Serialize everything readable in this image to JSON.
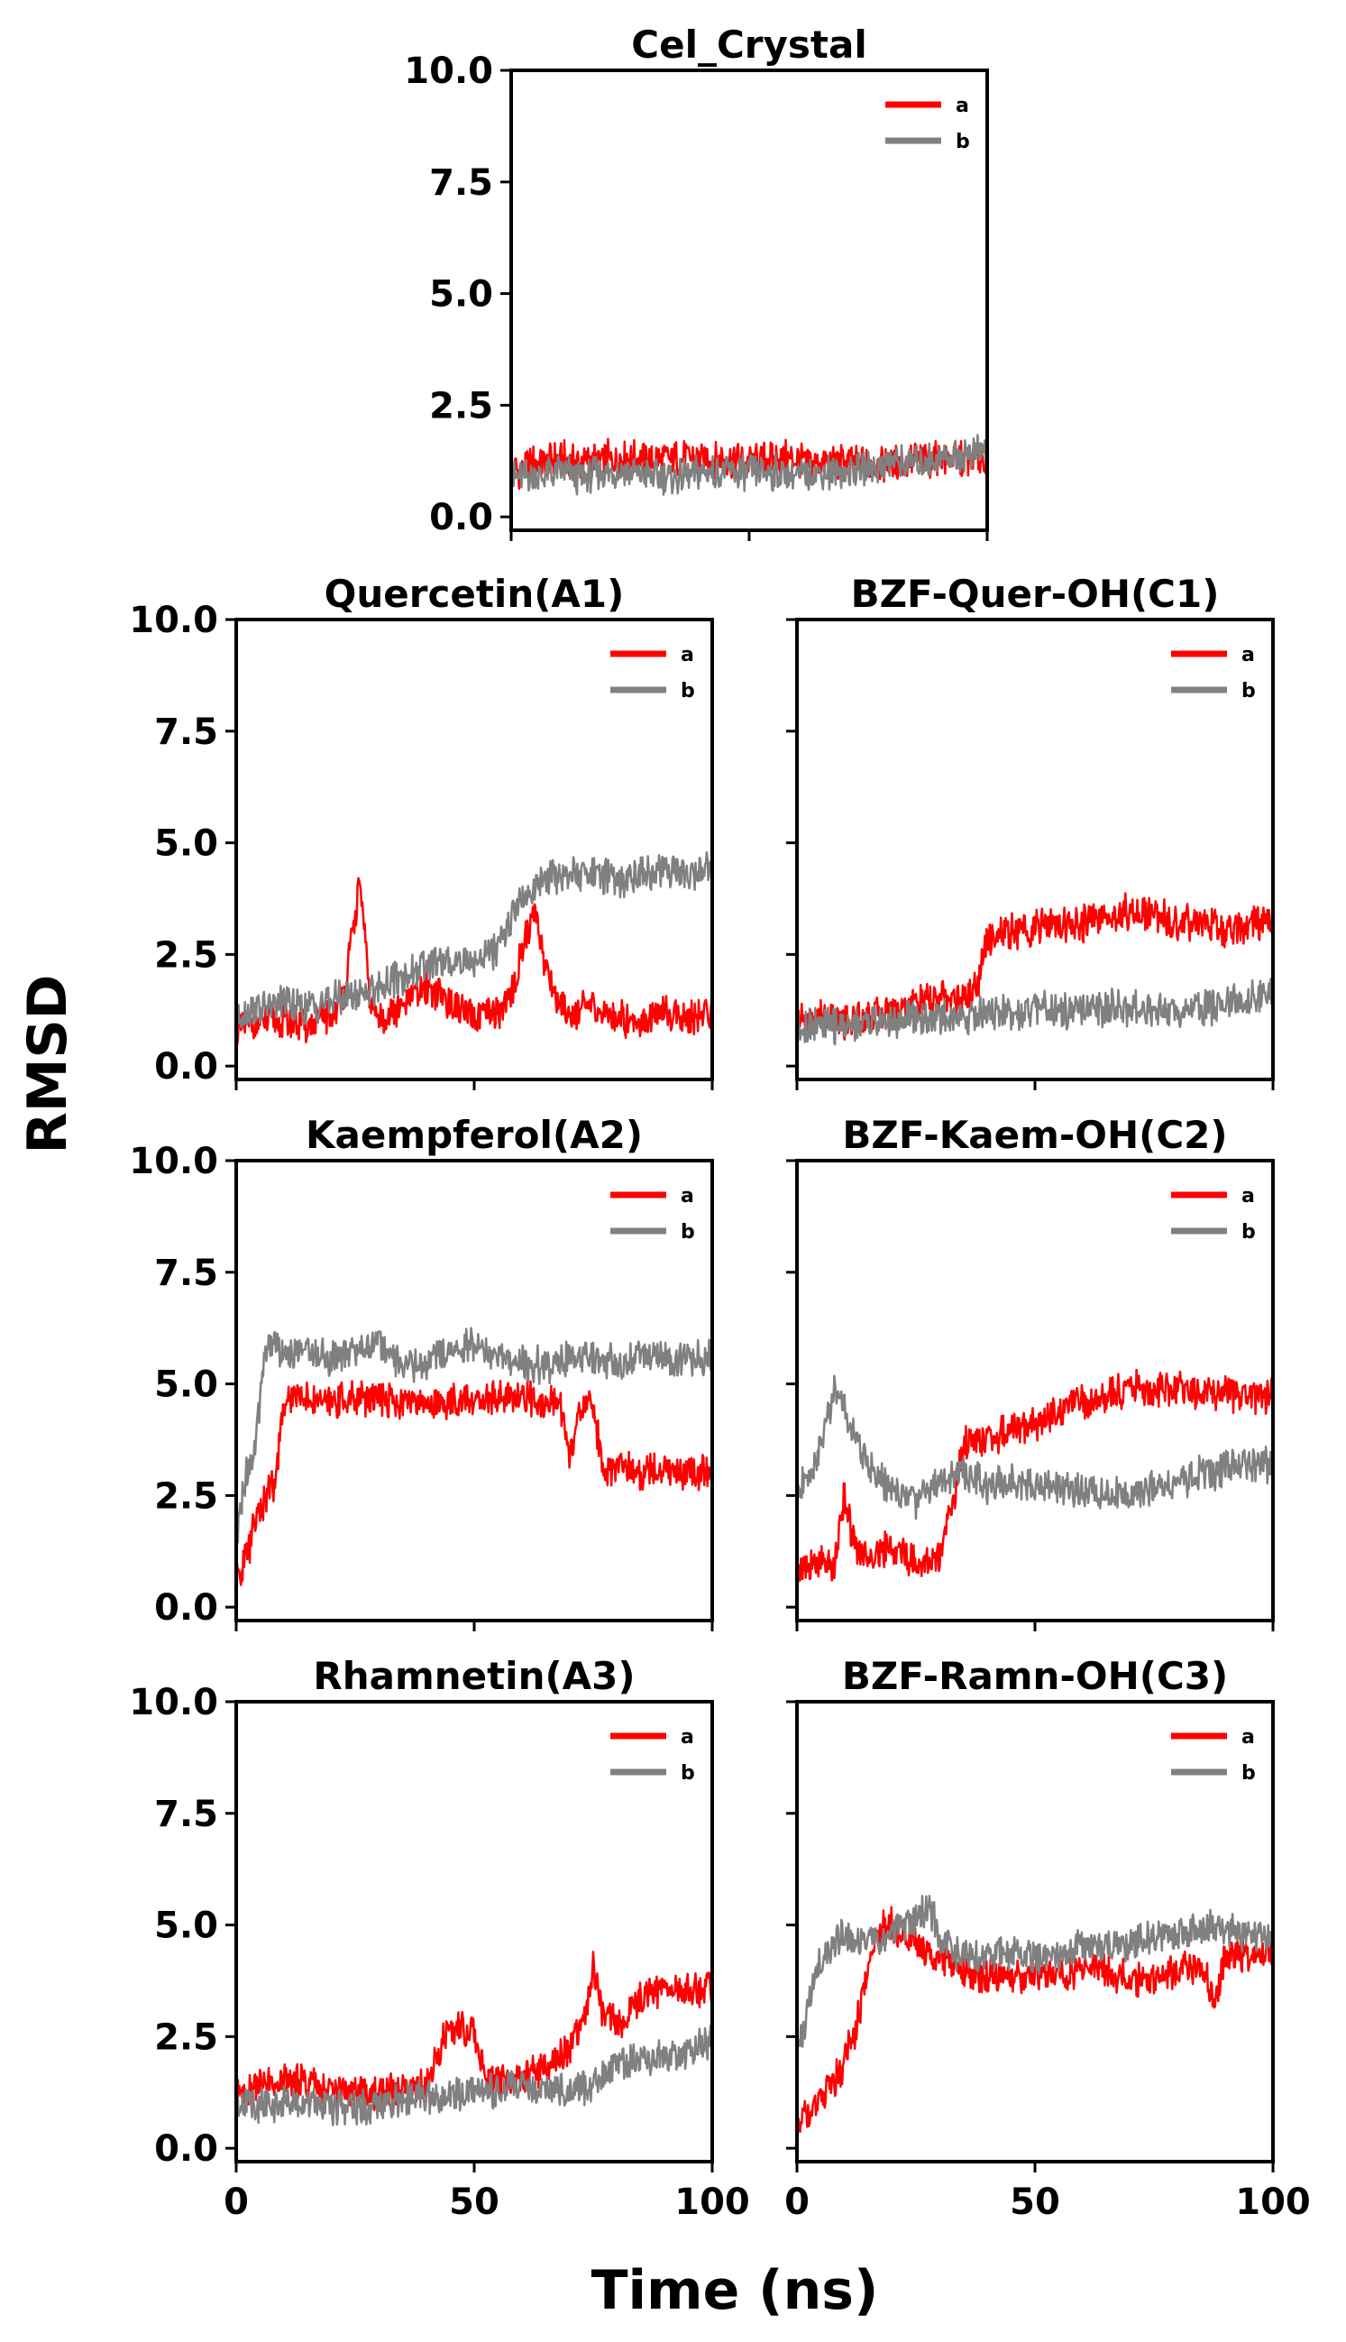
{
  "figure": {
    "xlabel": "Time (ns)",
    "ylabel": "RMSD"
  },
  "colors": {
    "a": "#ff0000",
    "b": "#808080",
    "axes": "#000000",
    "background": "#ffffff"
  },
  "chart_data": [
    {
      "id": "cel",
      "type": "line",
      "title": "Cel_Crystal",
      "xlim": [
        0,
        100
      ],
      "ylim": [
        -0.3,
        10.0
      ],
      "yticks": [
        "0.0",
        "2.5",
        "5.0",
        "7.5",
        "10.0"
      ],
      "xticks": [
        "0",
        "50",
        "100"
      ],
      "show_xticklabels": false,
      "show_yticklabels": true,
      "legend": "upper right",
      "series": [
        {
          "name": "a",
          "color": "#ff0000",
          "x": [
            0,
            5,
            10,
            15,
            20,
            25,
            30,
            35,
            40,
            45,
            50,
            55,
            60,
            65,
            70,
            75,
            80,
            85,
            90,
            95,
            100
          ],
          "y": [
            1.0,
            1.2,
            1.3,
            1.2,
            1.3,
            1.3,
            1.3,
            1.3,
            1.3,
            1.3,
            1.2,
            1.3,
            1.3,
            1.2,
            1.2,
            1.2,
            1.2,
            1.3,
            1.3,
            1.3,
            1.3
          ]
        },
        {
          "name": "b",
          "color": "#808080",
          "x": [
            0,
            5,
            10,
            15,
            20,
            25,
            30,
            35,
            40,
            45,
            50,
            55,
            60,
            65,
            70,
            75,
            80,
            85,
            90,
            95,
            100
          ],
          "y": [
            0.9,
            0.9,
            1.0,
            0.9,
            1.0,
            1.0,
            0.9,
            0.9,
            1.0,
            1.0,
            1.0,
            1.0,
            0.9,
            1.0,
            1.0,
            1.1,
            1.2,
            1.2,
            1.3,
            1.4,
            1.5
          ]
        }
      ]
    },
    {
      "id": "a1",
      "type": "line",
      "title": "Quercetin(A1)",
      "xlim": [
        0,
        100
      ],
      "ylim": [
        -0.3,
        10.0
      ],
      "yticks": [
        "0.0",
        "2.5",
        "5.0",
        "7.5",
        "10.0"
      ],
      "xticks": [
        "0",
        "50",
        "100"
      ],
      "show_xticklabels": false,
      "show_yticklabels": true,
      "legend": "upper right",
      "series": [
        {
          "name": "a",
          "color": "#ff0000",
          "x": [
            0,
            5,
            10,
            15,
            20,
            23,
            26,
            28,
            30,
            35,
            40,
            45,
            50,
            55,
            58,
            60,
            63,
            65,
            67,
            70,
            75,
            80,
            85,
            90,
            95,
            100
          ],
          "y": [
            0.8,
            1.0,
            1.0,
            0.9,
            1.1,
            1.8,
            4.2,
            1.5,
            1.0,
            1.3,
            1.8,
            1.4,
            1.0,
            1.2,
            1.6,
            2.6,
            3.5,
            2.2,
            1.6,
            1.2,
            1.3,
            1.1,
            1.0,
            1.2,
            1.1,
            1.2
          ]
        },
        {
          "name": "b",
          "color": "#808080",
          "x": [
            0,
            5,
            10,
            15,
            20,
            25,
            30,
            35,
            40,
            45,
            50,
            55,
            60,
            65,
            70,
            75,
            80,
            85,
            90,
            95,
            100
          ],
          "y": [
            1.1,
            1.3,
            1.4,
            1.3,
            1.5,
            1.6,
            1.8,
            2.0,
            2.2,
            2.3,
            2.4,
            2.6,
            3.8,
            4.2,
            4.3,
            4.3,
            4.2,
            4.3,
            4.4,
            4.3,
            4.4
          ]
        }
      ]
    },
    {
      "id": "c1",
      "type": "line",
      "title": "BZF-Quer-OH(C1)",
      "xlim": [
        0,
        100
      ],
      "ylim": [
        -0.3,
        10.0
      ],
      "yticks": [
        "0.0",
        "2.5",
        "5.0",
        "7.5",
        "10.0"
      ],
      "xticks": [
        "0",
        "50",
        "100"
      ],
      "show_xticklabels": false,
      "show_yticklabels": false,
      "legend": "upper right",
      "series": [
        {
          "name": "a",
          "color": "#ff0000",
          "x": [
            0,
            5,
            10,
            15,
            20,
            25,
            30,
            35,
            38,
            40,
            45,
            50,
            55,
            60,
            65,
            70,
            75,
            80,
            85,
            90,
            95,
            100
          ],
          "y": [
            1.0,
            1.1,
            1.0,
            1.1,
            1.3,
            1.4,
            1.5,
            1.5,
            1.8,
            2.9,
            3.0,
            3.1,
            3.2,
            3.2,
            3.3,
            3.5,
            3.4,
            3.2,
            3.2,
            3.0,
            3.2,
            3.3
          ]
        },
        {
          "name": "b",
          "color": "#808080",
          "x": [
            0,
            5,
            10,
            15,
            20,
            25,
            30,
            35,
            40,
            45,
            50,
            55,
            60,
            65,
            70,
            75,
            80,
            85,
            90,
            95,
            100
          ],
          "y": [
            0.9,
            0.9,
            0.9,
            1.0,
            1.0,
            1.1,
            1.1,
            1.1,
            1.2,
            1.2,
            1.3,
            1.2,
            1.2,
            1.3,
            1.3,
            1.3,
            1.3,
            1.3,
            1.4,
            1.5,
            1.6
          ]
        }
      ]
    },
    {
      "id": "a2",
      "type": "line",
      "title": "Kaempferol(A2)",
      "xlim": [
        0,
        100
      ],
      "ylim": [
        -0.3,
        10.0
      ],
      "yticks": [
        "0.0",
        "2.5",
        "5.0",
        "7.5",
        "10.0"
      ],
      "xticks": [
        "0",
        "50",
        "100"
      ],
      "show_xticklabels": false,
      "show_yticklabels": true,
      "legend": "upper right",
      "series": [
        {
          "name": "a",
          "color": "#ff0000",
          "x": [
            0,
            1,
            3,
            5,
            8,
            10,
            12,
            15,
            20,
            25,
            30,
            35,
            40,
            45,
            50,
            55,
            60,
            65,
            68,
            70,
            72,
            75,
            77,
            80,
            85,
            90,
            95,
            100
          ],
          "y": [
            0.5,
            0.8,
            1.5,
            2.2,
            2.8,
            4.5,
            4.8,
            4.7,
            4.6,
            4.7,
            4.7,
            4.6,
            4.6,
            4.6,
            4.6,
            4.7,
            4.7,
            4.6,
            4.6,
            3.2,
            4.5,
            4.5,
            3.0,
            3.1,
            3.0,
            3.1,
            3.0,
            3.0
          ]
        },
        {
          "name": "b",
          "color": "#808080",
          "x": [
            0,
            2,
            4,
            6,
            8,
            10,
            15,
            20,
            25,
            30,
            35,
            40,
            45,
            50,
            55,
            60,
            65,
            70,
            75,
            80,
            85,
            90,
            95,
            100
          ],
          "y": [
            1.5,
            3.0,
            3.5,
            5.8,
            6.0,
            5.6,
            5.8,
            5.6,
            5.7,
            6.0,
            5.4,
            5.5,
            5.8,
            5.9,
            5.6,
            5.5,
            5.4,
            5.6,
            5.6,
            5.5,
            5.6,
            5.5,
            5.6,
            5.6
          ]
        }
      ]
    },
    {
      "id": "c2",
      "type": "line",
      "title": "BZF-Kaem-OH(C2)",
      "xlim": [
        0,
        100
      ],
      "ylim": [
        -0.3,
        10.0
      ],
      "yticks": [
        "0.0",
        "2.5",
        "5.0",
        "7.5",
        "10.0"
      ],
      "xticks": [
        "0",
        "50",
        "100"
      ],
      "show_xticklabels": false,
      "show_yticklabels": false,
      "legend": "upper right",
      "series": [
        {
          "name": "a",
          "color": "#ff0000",
          "x": [
            0,
            5,
            8,
            10,
            12,
            15,
            20,
            25,
            30,
            33,
            35,
            40,
            45,
            50,
            55,
            60,
            65,
            70,
            75,
            80,
            85,
            90,
            95,
            100
          ],
          "y": [
            0.8,
            1.0,
            1.0,
            2.5,
            1.3,
            1.2,
            1.3,
            1.0,
            1.1,
            2.5,
            3.6,
            3.8,
            4.0,
            4.1,
            4.4,
            4.6,
            4.7,
            4.9,
            4.9,
            4.9,
            4.8,
            4.8,
            4.7,
            4.8
          ]
        },
        {
          "name": "b",
          "color": "#808080",
          "x": [
            0,
            3,
            6,
            8,
            10,
            12,
            15,
            20,
            25,
            30,
            35,
            40,
            45,
            50,
            55,
            60,
            65,
            70,
            75,
            80,
            85,
            90,
            95,
            100
          ],
          "y": [
            2.5,
            3.0,
            4.0,
            5.0,
            4.5,
            3.8,
            3.2,
            2.6,
            2.4,
            2.9,
            3.0,
            2.7,
            2.8,
            2.8,
            2.7,
            2.6,
            2.6,
            2.5,
            2.7,
            2.8,
            3.0,
            3.1,
            3.2,
            3.2
          ]
        }
      ]
    },
    {
      "id": "a3",
      "type": "line",
      "title": "Rhamnetin(A3)",
      "xlim": [
        0,
        100
      ],
      "ylim": [
        -0.3,
        10.0
      ],
      "yticks": [
        "0.0",
        "2.5",
        "5.0",
        "7.5",
        "10.0"
      ],
      "xticks": [
        "0",
        "50",
        "100"
      ],
      "show_xticklabels": true,
      "show_yticklabels": true,
      "legend": "upper right",
      "series": [
        {
          "name": "a",
          "color": "#ff0000",
          "x": [
            0,
            5,
            10,
            15,
            20,
            25,
            30,
            35,
            40,
            44,
            47,
            50,
            52,
            55,
            60,
            65,
            70,
            73,
            75,
            77,
            80,
            85,
            90,
            95,
            100
          ],
          "y": [
            1.2,
            1.4,
            1.5,
            1.5,
            1.3,
            1.2,
            1.2,
            1.3,
            1.4,
            2.6,
            2.7,
            2.6,
            1.6,
            1.5,
            1.6,
            1.8,
            2.2,
            2.9,
            4.0,
            3.0,
            2.8,
            3.4,
            3.6,
            3.5,
            3.6
          ]
        },
        {
          "name": "b",
          "color": "#808080",
          "x": [
            0,
            5,
            10,
            15,
            20,
            25,
            30,
            35,
            40,
            45,
            50,
            55,
            60,
            65,
            70,
            75,
            80,
            85,
            90,
            95,
            100
          ],
          "y": [
            1.0,
            1.0,
            1.0,
            1.0,
            0.9,
            0.9,
            1.0,
            1.1,
            1.2,
            1.2,
            1.3,
            1.3,
            1.4,
            1.3,
            1.3,
            1.4,
            1.9,
            2.0,
            2.1,
            2.2,
            2.4
          ]
        }
      ]
    },
    {
      "id": "c3",
      "type": "line",
      "title": "BZF-Ramn-OH(C3)",
      "xlim": [
        0,
        100
      ],
      "ylim": [
        -0.3,
        10.0
      ],
      "yticks": [
        "0.0",
        "2.5",
        "5.0",
        "7.5",
        "10.0"
      ],
      "xticks": [
        "0",
        "50",
        "100"
      ],
      "show_xticklabels": true,
      "show_yticklabels": false,
      "legend": "upper right",
      "series": [
        {
          "name": "a",
          "color": "#ff0000",
          "x": [
            0,
            3,
            5,
            8,
            10,
            12,
            14,
            16,
            18,
            20,
            25,
            30,
            35,
            40,
            45,
            50,
            55,
            60,
            65,
            70,
            75,
            80,
            85,
            88,
            90,
            95,
            100
          ],
          "y": [
            0.5,
            0.8,
            1.0,
            1.5,
            2.0,
            2.5,
            3.5,
            4.5,
            4.9,
            5.0,
            4.6,
            4.2,
            4.0,
            3.8,
            3.8,
            3.8,
            3.9,
            4.0,
            4.0,
            3.8,
            3.7,
            4.0,
            4.1,
            3.3,
            4.3,
            4.4,
            4.4
          ]
        },
        {
          "name": "b",
          "color": "#808080",
          "x": [
            0,
            2,
            4,
            6,
            8,
            10,
            15,
            20,
            25,
            28,
            30,
            35,
            40,
            45,
            50,
            55,
            60,
            65,
            70,
            75,
            80,
            85,
            90,
            95,
            100
          ],
          "y": [
            2.0,
            3.0,
            4.0,
            4.4,
            4.6,
            4.8,
            4.6,
            4.8,
            5.2,
            5.4,
            4.6,
            4.3,
            4.3,
            4.4,
            4.3,
            4.3,
            4.5,
            4.6,
            4.6,
            4.7,
            4.8,
            4.9,
            4.9,
            4.8,
            4.8
          ]
        }
      ]
    }
  ]
}
